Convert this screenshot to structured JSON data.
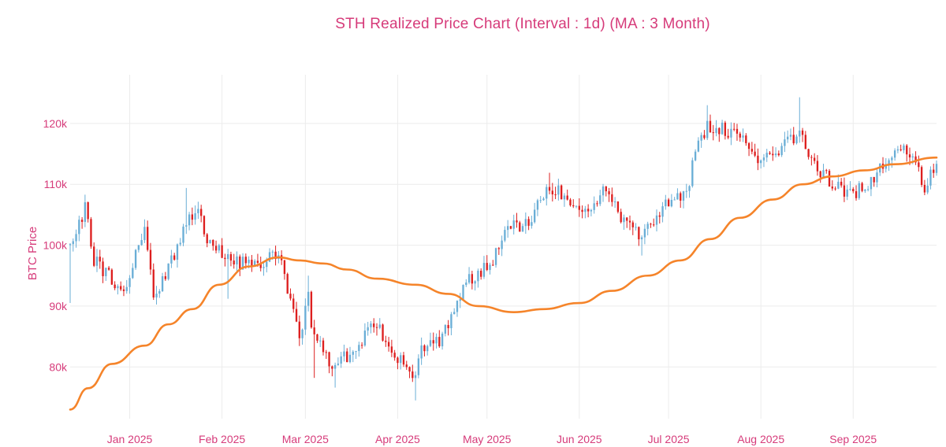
{
  "chart_data": {
    "type": "candlestick",
    "title": "STH Realized Price Chart (Interval : 1d) (MA : 3 Month)",
    "xlabel": "",
    "ylabel": "BTC Price",
    "xlim": [
      "2024-12-12",
      "2025-09-29"
    ],
    "ylim": [
      71500,
      128000
    ],
    "y_ticks": [
      {
        "value": 80000,
        "label": "80k"
      },
      {
        "value": 90000,
        "label": "90k"
      },
      {
        "value": 100000,
        "label": "100k"
      },
      {
        "value": 110000,
        "label": "110k"
      },
      {
        "value": 120000,
        "label": "120k"
      }
    ],
    "x_ticks": [
      {
        "date": "2025-01-01",
        "label": "Jan 2025"
      },
      {
        "date": "2025-02-01",
        "label": "Feb 2025"
      },
      {
        "date": "2025-03-01",
        "label": "Mar 2025"
      },
      {
        "date": "2025-04-01",
        "label": "Apr 2025"
      },
      {
        "date": "2025-05-01",
        "label": "May 2025"
      },
      {
        "date": "2025-06-01",
        "label": "Jun 2025"
      },
      {
        "date": "2025-07-01",
        "label": "Jul 2025"
      },
      {
        "date": "2025-08-01",
        "label": "Aug 2025"
      },
      {
        "date": "2025-09-01",
        "label": "Sep 2025"
      }
    ],
    "close_anchors": [
      [
        "2024-12-12",
        100000
      ],
      [
        "2024-12-17",
        106000
      ],
      [
        "2024-12-20",
        97500
      ],
      [
        "2024-12-26",
        94500
      ],
      [
        "2024-12-30",
        93000
      ],
      [
        "2025-01-06",
        102000
      ],
      [
        "2025-01-09",
        92500
      ],
      [
        "2025-01-13",
        94500
      ],
      [
        "2025-01-20",
        104000
      ],
      [
        "2025-01-24",
        105500
      ],
      [
        "2025-01-27",
        101000
      ],
      [
        "2025-02-03",
        97500
      ],
      [
        "2025-02-10",
        97000
      ],
      [
        "2025-02-20",
        98000
      ],
      [
        "2025-02-24",
        91500
      ],
      [
        "2025-02-27",
        84500
      ],
      [
        "2025-03-02",
        93000
      ],
      [
        "2025-03-03",
        86000
      ],
      [
        "2025-03-10",
        80500
      ],
      [
        "2025-03-18",
        82500
      ],
      [
        "2025-03-24",
        87500
      ],
      [
        "2025-03-30",
        82500
      ],
      [
        "2025-04-06",
        78500
      ],
      [
        "2025-04-09",
        82500
      ],
      [
        "2025-04-15",
        84500
      ],
      [
        "2025-04-22",
        91500
      ],
      [
        "2025-04-25",
        94500
      ],
      [
        "2025-05-02",
        96500
      ],
      [
        "2025-05-08",
        103000
      ],
      [
        "2025-05-15",
        103500
      ],
      [
        "2025-05-21",
        109500
      ],
      [
        "2025-05-27",
        108500
      ],
      [
        "2025-06-04",
        104500
      ],
      [
        "2025-06-09",
        110000
      ],
      [
        "2025-06-14",
        105000
      ],
      [
        "2025-06-22",
        101000
      ],
      [
        "2025-06-30",
        107000
      ],
      [
        "2025-07-07",
        108000
      ],
      [
        "2025-07-10",
        116000
      ],
      [
        "2025-07-14",
        119500
      ],
      [
        "2025-07-24",
        118500
      ],
      [
        "2025-08-02",
        113500
      ],
      [
        "2025-08-09",
        117000
      ],
      [
        "2025-08-14",
        118500
      ],
      [
        "2025-08-19",
        113500
      ],
      [
        "2025-08-25",
        110000
      ],
      [
        "2025-09-01",
        108500
      ],
      [
        "2025-09-08",
        111000
      ],
      [
        "2025-09-15",
        115500
      ],
      [
        "2025-09-18",
        117000
      ],
      [
        "2025-09-22",
        113000
      ],
      [
        "2025-09-25",
        109500
      ],
      [
        "2025-09-29",
        114000
      ]
    ],
    "high_spikes": [
      [
        "2024-12-17",
        108300
      ],
      [
        "2025-01-20",
        109400
      ],
      [
        "2025-07-14",
        123000
      ],
      [
        "2025-08-14",
        124300
      ],
      [
        "2025-03-02",
        95000
      ],
      [
        "2025-05-22",
        111900
      ]
    ],
    "low_spikes": [
      [
        "2024-12-12",
        90500
      ],
      [
        "2025-02-03",
        91200
      ],
      [
        "2025-03-04",
        78200
      ],
      [
        "2025-03-11",
        76600
      ],
      [
        "2025-04-07",
        74500
      ],
      [
        "2025-06-22",
        98300
      ]
    ],
    "series": [
      {
        "name": "STH Realized Price (3 Month MA)",
        "color": "#f5842a",
        "points": [
          [
            "2024-12-12",
            73000
          ],
          [
            "2024-12-18",
            76500
          ],
          [
            "2024-12-26",
            80500
          ],
          [
            "2025-01-06",
            83500
          ],
          [
            "2025-01-14",
            87000
          ],
          [
            "2025-01-22",
            89500
          ],
          [
            "2025-01-31",
            93500
          ],
          [
            "2025-02-10",
            96500
          ],
          [
            "2025-02-20",
            98000
          ],
          [
            "2025-02-27",
            97500
          ],
          [
            "2025-03-07",
            97000
          ],
          [
            "2025-03-15",
            96000
          ],
          [
            "2025-03-25",
            94500
          ],
          [
            "2025-04-07",
            93500
          ],
          [
            "2025-04-18",
            92000
          ],
          [
            "2025-04-28",
            90000
          ],
          [
            "2025-05-10",
            89000
          ],
          [
            "2025-05-20",
            89500
          ],
          [
            "2025-06-01",
            90500
          ],
          [
            "2025-06-12",
            92500
          ],
          [
            "2025-06-24",
            95000
          ],
          [
            "2025-07-05",
            97500
          ],
          [
            "2025-07-15",
            101000
          ],
          [
            "2025-07-25",
            104500
          ],
          [
            "2025-08-05",
            107500
          ],
          [
            "2025-08-15",
            110000
          ],
          [
            "2025-08-25",
            111300
          ],
          [
            "2025-09-05",
            112300
          ],
          [
            "2025-09-15",
            113300
          ],
          [
            "2025-09-29",
            114400
          ]
        ]
      }
    ],
    "colors": {
      "increasing": "#6aaed6",
      "decreasing": "#dd1f1f",
      "ma_line": "#f5842a",
      "grid": "#ececec",
      "text": "#d63b7a",
      "title": "#d63b7a"
    }
  }
}
